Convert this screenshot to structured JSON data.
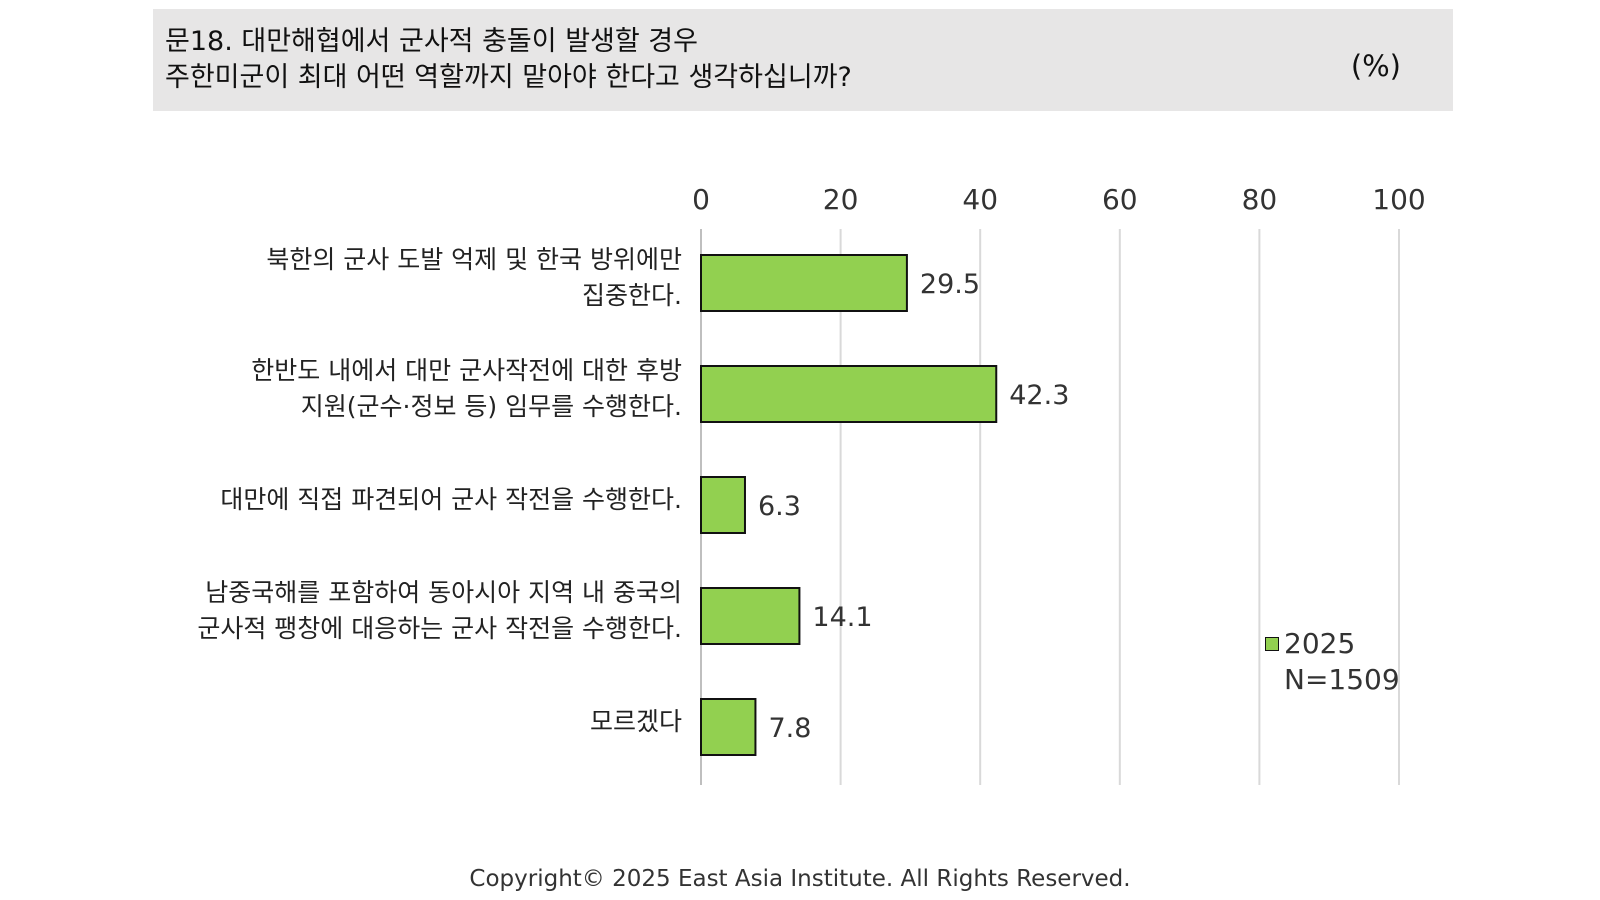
{
  "title": {
    "line1": "문18. 대만해협에서 군사적 충돌이 발생할 경우",
    "line2": "주한미군이 최대 어떤 역할까지 맡아야 한다고 생각하십니까?",
    "unit": "(%)"
  },
  "chart_data": {
    "type": "bar",
    "orientation": "horizontal",
    "categories": [
      [
        "북한의 군사 도발 억제 및 한국 방위에만",
        "집중한다."
      ],
      [
        "한반도 내에서 대만 군사작전에 대한 후방",
        "지원(군수·정보 등) 임무를 수행한다."
      ],
      [
        "대만에 직접 파견되어 군사 작전을 수행한다."
      ],
      [
        "남중국해를 포함하여 동아시아 지역 내 중국의",
        "군사적 팽창에 대응하는 군사 작전을 수행한다."
      ],
      [
        "모르겠다"
      ]
    ],
    "series": [
      {
        "name": "2025",
        "values": [
          29.5,
          42.3,
          6.3,
          14.1,
          7.8
        ],
        "color": "#92d050"
      }
    ],
    "value_labels": [
      "29.5",
      "42.3",
      "6.3",
      "14.1",
      "7.8"
    ],
    "xlim": [
      0,
      100
    ],
    "xticks": [
      "0",
      "20",
      "40",
      "60",
      "80",
      "100"
    ],
    "grid": true,
    "x_axis_position": "top",
    "legend_position": "bottom-right"
  },
  "legend": {
    "series_label": "2025",
    "sample": "N=1509"
  },
  "footer": {
    "copyright": "Copyright© 2025 East Asia Institute. All Rights Reserved."
  }
}
